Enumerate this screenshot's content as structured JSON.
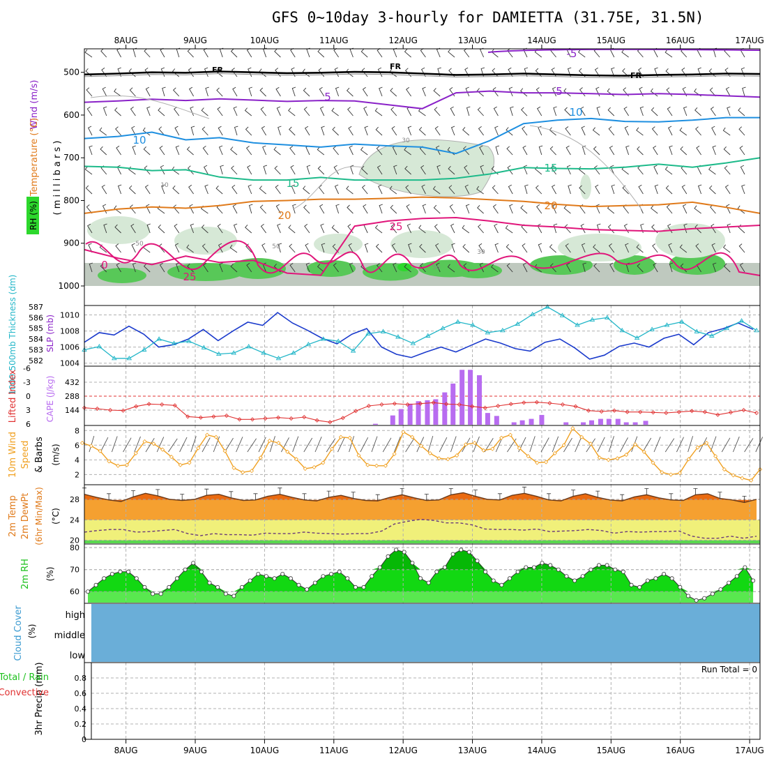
{
  "chart_data": {
    "type": "meteogram",
    "title": "GFS 0~10day 3-hourly for DAMIETTA (31.75E, 31.5N)",
    "x_labels": [
      "8AUG",
      "9AUG",
      "10AUG",
      "11AUG",
      "12AUG",
      "13AUG",
      "14AUG",
      "15AUG",
      "16AUG",
      "17AUG"
    ],
    "x_range_days": [
      -0.6,
      9.15
    ],
    "panels": {
      "upper_air": {
        "label_wind": "Wind (m/s)",
        "label_temp": "Temperature (°C)",
        "label_rh": "RH (%)",
        "label_units": "( m i l l i b a r s )",
        "y_ticks": [
          "500",
          "600",
          "700",
          "800",
          "900",
          "1000"
        ],
        "y_range_mb": [
          445,
          1000
        ],
        "contour_labels": [
          "FR",
          "FR",
          "FR",
          "5",
          "5",
          "-5",
          "10",
          "10",
          "15",
          "15",
          "20",
          "20",
          "25",
          "25",
          "0",
          "30",
          "30",
          "50",
          "50",
          "50",
          "10"
        ],
        "isotherms": [
          {
            "name": "FR",
            "color": "#000000",
            "mb": [
              505,
              503,
              500,
              501,
              498,
              500,
              502,
              501,
              499,
              500,
              503,
              506,
              505,
              503,
              505,
              507,
              508,
              506,
              505,
              503,
              504
            ]
          },
          {
            "name": "5",
            "color": "#8a22c8",
            "mb": [
              570,
              567,
              563,
              566,
              562,
              565,
              568,
              566,
              567,
              576,
              585,
              548,
              544,
              548,
              548,
              550,
              552,
              550,
              552,
              555,
              558
            ]
          },
          {
            "name": "10",
            "color": "#1e8fe0",
            "mb": [
              655,
              650,
              640,
              658,
              653,
              665,
              670,
              675,
              668,
              672,
              675,
              690,
              660,
              620,
              612,
              608,
              615,
              616,
              612,
              606,
              606
            ]
          },
          {
            "name": "15",
            "color": "#1dba8a",
            "mb": [
              720,
              722,
              730,
              728,
              745,
              752,
              752,
              746,
              752,
              752,
              752,
              748,
              738,
              723,
              725,
              726,
              722,
              715,
              722,
              712,
              700
            ]
          },
          {
            "name": "20",
            "color": "#e07a1a",
            "mb": [
              830,
              820,
              815,
              818,
              812,
              802,
              800,
              797,
              797,
              795,
              792,
              794,
              798,
              802,
              809,
              814,
              812,
              810,
              804,
              816,
              830
            ]
          },
          {
            "name": "25",
            "color": "#e0157a",
            "mb": [
              915,
              935,
              950,
              930,
              945,
              940,
              970,
              975,
              860,
              848,
              842,
              840,
              848,
              858,
              862,
              868,
              870,
              872,
              866,
              862,
              858
            ]
          }
        ]
      },
      "slp_thickness": {
        "label_thickness": "1000-500mb Thickness (dm)",
        "label_slp": "SLP (mb)",
        "thickness_ticks": [
          "587",
          "586",
          "585",
          "584",
          "583",
          "582"
        ],
        "slp_ticks": [
          "1010",
          "1008",
          "1006",
          "1004"
        ],
        "slp_range": [
          1003.8,
          1011
        ],
        "thickness_range": [
          581.6,
          587
        ],
        "slp_mb": [
          1006.6,
          1007.8,
          1007.5,
          1008.6,
          1007.6,
          1006.0,
          1006.3,
          1007.0,
          1008.2,
          1006.8,
          1008.0,
          1009.1,
          1008.7,
          1010.3,
          1009.0,
          1008.1,
          1007.1,
          1006.4,
          1007.6,
          1008.3,
          1006.0,
          1005.1,
          1004.7,
          1005.4,
          1006.0,
          1005.4,
          1006.2,
          1007.0,
          1006.5,
          1005.8,
          1005.5,
          1006.6,
          1007.0,
          1005.9,
          1004.5,
          1005.0,
          1006.1,
          1006.5,
          1006.0,
          1007.1,
          1007.6,
          1006.3,
          1007.8,
          1008.3,
          1009.0,
          1008.2
        ],
        "thickness_dm": [
          583.0,
          583.3,
          582.2,
          582.2,
          583.0,
          584.0,
          583.6,
          583.8,
          583.2,
          582.6,
          582.7,
          583.3,
          582.7,
          582.2,
          582.7,
          583.5,
          584.0,
          583.8,
          582.9,
          584.5,
          584.7,
          584.2,
          583.6,
          584.3,
          585.0,
          585.6,
          585.3,
          584.6,
          584.8,
          585.4,
          586.3,
          587.0,
          586.2,
          585.3,
          585.8,
          586.0,
          584.8,
          584.1,
          584.9,
          585.3,
          585.6,
          584.7,
          584.3,
          585.0,
          585.7,
          584.8
        ]
      },
      "cape_li": {
        "label_li": "Lifted Index",
        "label_cape": "CAPE (J/kg)",
        "li_ticks": [
          "-6",
          "-3",
          "0",
          "3",
          "6"
        ],
        "cape_ticks": [
          "432",
          "288",
          "144"
        ],
        "li_range": [
          -6,
          6
        ],
        "cape_range": [
          0,
          576
        ],
        "lifted_index": [
          2.5,
          2.7,
          3.0,
          3.1,
          2.2,
          1.7,
          1.8,
          2.0,
          4.4,
          4.6,
          4.4,
          4.2,
          5.0,
          5.0,
          4.8,
          4.6,
          4.8,
          4.5,
          5.2,
          5.6,
          4.7,
          3.2,
          2.1,
          1.8,
          1.6,
          1.8,
          1.6,
          1.4,
          1.7,
          1.8,
          2.2,
          2.5,
          2.1,
          1.7,
          1.4,
          1.3,
          1.5,
          1.8,
          2.2,
          3.1,
          3.3,
          3.1,
          3.4,
          3.4,
          3.5,
          3.6,
          3.4,
          3.2,
          3.4,
          4.0,
          3.5,
          3.0,
          3.6
        ],
        "cape_bars": [
          {
            "day": 3.6,
            "value": 10
          },
          {
            "day": 3.85,
            "value": 95
          },
          {
            "day": 3.97,
            "value": 160
          },
          {
            "day": 4.1,
            "value": 215
          },
          {
            "day": 4.22,
            "value": 240
          },
          {
            "day": 4.35,
            "value": 250
          },
          {
            "day": 4.47,
            "value": 260
          },
          {
            "day": 4.6,
            "value": 330
          },
          {
            "day": 4.72,
            "value": 420
          },
          {
            "day": 4.85,
            "value": 560
          },
          {
            "day": 4.97,
            "value": 560
          },
          {
            "day": 5.1,
            "value": 505
          },
          {
            "day": 5.22,
            "value": 120
          },
          {
            "day": 5.35,
            "value": 90
          },
          {
            "day": 5.6,
            "value": 25
          },
          {
            "day": 5.72,
            "value": 45
          },
          {
            "day": 5.85,
            "value": 60
          },
          {
            "day": 6.0,
            "value": 100
          },
          {
            "day": 6.35,
            "value": 25
          },
          {
            "day": 6.6,
            "value": 25
          },
          {
            "day": 6.72,
            "value": 45
          },
          {
            "day": 6.85,
            "value": 60
          },
          {
            "day": 6.97,
            "value": 60
          },
          {
            "day": 7.1,
            "value": 60
          },
          {
            "day": 7.22,
            "value": 25
          },
          {
            "day": 7.35,
            "value": 25
          },
          {
            "day": 7.5,
            "value": 40
          }
        ]
      },
      "wind10m": {
        "label_a": "10m Wind",
        "label_b": "Speed",
        "label_c": "& Barbs",
        "label_units": "(m/s)",
        "y_ticks": [
          "8",
          "6",
          "4",
          "2"
        ],
        "y_range": [
          0.8,
          8.5
        ],
        "speed_ms": [
          6.3,
          5.9,
          5.2,
          3.8,
          3.2,
          3.3,
          4.9,
          6.5,
          6.2,
          5.4,
          4.4,
          3.3,
          3.6,
          5.6,
          7.4,
          7.1,
          5.2,
          2.9,
          2.3,
          2.5,
          4.3,
          6.6,
          6.3,
          5.1,
          4.1,
          2.8,
          3.0,
          3.6,
          5.5,
          7.1,
          7.0,
          4.6,
          3.3,
          3.2,
          3.2,
          4.8,
          7.8,
          7.1,
          5.9,
          4.9,
          4.2,
          4.1,
          4.6,
          6.1,
          6.3,
          5.3,
          5.5,
          7.0,
          7.4,
          5.6,
          4.5,
          3.6,
          3.7,
          4.9,
          6.0,
          8.3,
          7.1,
          6.2,
          4.3,
          4.0,
          4.2,
          4.7,
          6.1,
          5.1,
          3.6,
          2.3,
          2.0,
          2.2,
          4.1,
          5.7,
          6.3,
          4.5,
          2.7,
          1.9,
          1.5,
          1.2,
          2.7
        ]
      },
      "temp2m": {
        "label_a": "2m Temp",
        "label_b": "2m DewPt",
        "label_c": "(6hr Min/Max)",
        "label_units": "(°C)",
        "y_ticks": [
          "28",
          "24",
          "20"
        ],
        "y_range": [
          19.4,
          30.6
        ],
        "temp_c": [
          29.0,
          28.4,
          27.9,
          27.6,
          28.5,
          29.2,
          28.7,
          28.0,
          27.8,
          28.0,
          28.8,
          29.0,
          28.3,
          27.8,
          27.9,
          28.6,
          29.0,
          28.4,
          27.9,
          27.7,
          28.4,
          28.8,
          28.2,
          27.8,
          27.7,
          28.4,
          28.9,
          28.3,
          27.8,
          27.9,
          28.9,
          29.3,
          28.6,
          28.0,
          27.9,
          28.8,
          29.2,
          28.6,
          27.9,
          27.7,
          28.6,
          29.1,
          28.4,
          27.9,
          27.7,
          28.5,
          28.9,
          28.3,
          27.9,
          27.8,
          28.9,
          29.1,
          28.2,
          27.9,
          27.4,
          28.0
        ],
        "dewpt_c": [
          21.6,
          21.9,
          22.1,
          22.1,
          21.6,
          21.7,
          21.9,
          22.1,
          21.3,
          20.9,
          21.3,
          21.1,
          21.1,
          21.0,
          21.4,
          21.3,
          21.3,
          21.6,
          21.4,
          21.3,
          21.2,
          21.3,
          21.3,
          21.8,
          23.2,
          23.7,
          24.1,
          23.9,
          23.4,
          23.4,
          23.0,
          22.2,
          22.1,
          22.1,
          22.0,
          22.2,
          21.7,
          21.8,
          21.9,
          22.1,
          21.9,
          21.4,
          21.7,
          21.6,
          21.7,
          21.7,
          21.8,
          20.8,
          20.4,
          20.4,
          20.8,
          20.4,
          20.8
        ]
      },
      "rh2m": {
        "label_a": "2m RH",
        "label_units": "(%)",
        "y_ticks": [
          "80",
          "70",
          "60"
        ],
        "y_range": [
          55,
          81
        ],
        "rh_pct": [
          60,
          63,
          66,
          68,
          69,
          69,
          66,
          62,
          59,
          59,
          62,
          66,
          70,
          73,
          69,
          64,
          62,
          59,
          58,
          62,
          65,
          68,
          67,
          66,
          68,
          66,
          63,
          61,
          64,
          67,
          68,
          69,
          66,
          62,
          62,
          67,
          71,
          76,
          79,
          78,
          73,
          66,
          64,
          69,
          71,
          77,
          79,
          78,
          74,
          69,
          65,
          63,
          66,
          69,
          71,
          71,
          73,
          72,
          70,
          67,
          65,
          67,
          70,
          72,
          72,
          70,
          69,
          63,
          62,
          65,
          66,
          68,
          66,
          62,
          58,
          56,
          57,
          59,
          61,
          64,
          67,
          71,
          65
        ]
      },
      "cloud": {
        "label_a": "Cloud Cover",
        "label_units": "(%)",
        "levels": [
          "high",
          "middle",
          "low"
        ],
        "fill_color": "#6aaed8"
      },
      "precip": {
        "label_a": "3hr Precip (mm)",
        "label_total": "Total / Rain",
        "label_conv": "Convective",
        "y_ticks": [
          "0.8",
          "0.6",
          "0.4",
          "0.2",
          "0"
        ],
        "y_range": [
          0,
          1.0
        ],
        "run_total": "Run Total = 0",
        "values_mm": []
      }
    }
  }
}
